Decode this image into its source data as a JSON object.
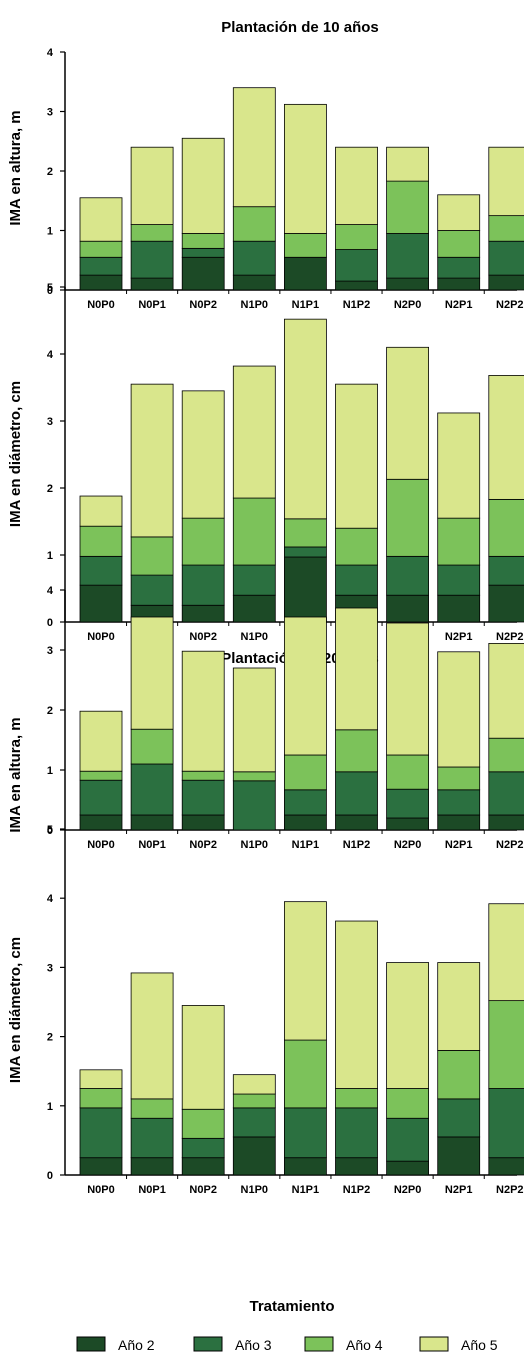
{
  "colors": {
    "Año 2": "#1c4a26",
    "Año 3": "#2b7040",
    "Año 4": "#7cc25a",
    "Año 5": "#d9e68c"
  },
  "legend": [
    "Año 2",
    "Año 3",
    "Año 4",
    "Año 5"
  ],
  "xlabel": "Tratamiento",
  "chart_data": [
    {
      "type": "bar",
      "stacked": true,
      "title": "Plantación de 10 años",
      "ylabel": "IMA en altura, m",
      "xlabel": "",
      "ylim": [
        0,
        4
      ],
      "yticks": [
        "0",
        "1",
        "2",
        "3",
        "4"
      ],
      "categories": [
        "N0P0",
        "N0P1",
        "N0P2",
        "N1P0",
        "N1P1",
        "N1P2",
        "N2P0",
        "N2P1",
        "N2P2"
      ],
      "series": [
        {
          "name": "Año 2",
          "values": [
            0.25,
            0.2,
            0.55,
            0.25,
            0.55,
            0.15,
            0.2,
            0.2,
            0.25
          ]
        },
        {
          "name": "Año 3",
          "values": [
            0.3,
            0.62,
            0.15,
            0.57,
            0.0,
            0.53,
            0.75,
            0.35,
            0.57
          ]
        },
        {
          "name": "Año 4",
          "values": [
            0.27,
            0.28,
            0.25,
            0.58,
            0.4,
            0.42,
            0.88,
            0.45,
            0.43
          ]
        },
        {
          "name": "Año 5",
          "values": [
            0.73,
            1.3,
            1.6,
            2.0,
            2.17,
            1.3,
            0.57,
            0.6,
            1.15
          ]
        }
      ]
    },
    {
      "type": "bar",
      "stacked": true,
      "title": "",
      "ylabel": "IMA en diámetro, cm",
      "xlabel": "",
      "ylim": [
        0,
        5
      ],
      "yticks": [
        "0",
        "1",
        "2",
        "3",
        "4",
        "5"
      ],
      "categories": [
        "N0P0",
        "N0P1",
        "N0P2",
        "N1P0",
        "N1P1",
        "N1P2",
        "N2P0",
        "N2P1",
        "N2P2"
      ],
      "series": [
        {
          "name": "Año 2",
          "values": [
            0.55,
            0.25,
            0.25,
            0.4,
            0.97,
            0.4,
            0.4,
            0.4,
            0.55
          ]
        },
        {
          "name": "Año 3",
          "values": [
            0.43,
            0.45,
            0.6,
            0.45,
            0.15,
            0.45,
            0.58,
            0.45,
            0.43
          ]
        },
        {
          "name": "Año 4",
          "values": [
            0.45,
            0.57,
            0.7,
            1.0,
            0.42,
            0.55,
            1.15,
            0.7,
            0.85
          ]
        },
        {
          "name": "Año 5",
          "values": [
            0.45,
            2.28,
            1.9,
            1.97,
            2.98,
            2.15,
            1.97,
            1.57,
            1.85
          ]
        }
      ]
    },
    {
      "type": "bar",
      "stacked": true,
      "title": "Plantación de 20 años",
      "ylabel": "IMA en altura, m",
      "xlabel": "",
      "ylim": [
        0,
        4
      ],
      "yticks": [
        "0",
        "1",
        "2",
        "3",
        "4"
      ],
      "categories": [
        "N0P0",
        "N0P1",
        "N0P2",
        "N1P0",
        "N1P1",
        "N1P2",
        "N2P0",
        "N2P1",
        "N2P2"
      ],
      "series": [
        {
          "name": "Año 2",
          "values": [
            0.25,
            0.25,
            0.25,
            0.0,
            0.25,
            0.25,
            0.2,
            0.25,
            0.25
          ]
        },
        {
          "name": "Año 3",
          "values": [
            0.58,
            0.85,
            0.58,
            0.82,
            0.42,
            0.72,
            0.48,
            0.42,
            0.72
          ]
        },
        {
          "name": "Año 4",
          "values": [
            0.15,
            0.58,
            0.15,
            0.15,
            0.58,
            0.7,
            0.57,
            0.38,
            0.56
          ]
        },
        {
          "name": "Año 5",
          "values": [
            1.0,
            1.87,
            2.0,
            1.73,
            2.3,
            2.03,
            2.2,
            1.92,
            1.58
          ]
        }
      ]
    },
    {
      "type": "bar",
      "stacked": true,
      "title": "",
      "ylabel": "IMA en diámetro, cm",
      "xlabel": "Tratamiento",
      "ylim": [
        0,
        5
      ],
      "yticks": [
        "0",
        "1",
        "2",
        "3",
        "4",
        "5"
      ],
      "categories": [
        "N0P0",
        "N0P1",
        "N0P2",
        "N1P0",
        "N1P1",
        "N1P2",
        "N2P0",
        "N2P1",
        "N2P2"
      ],
      "series": [
        {
          "name": "Año 2",
          "values": [
            0.25,
            0.25,
            0.25,
            0.55,
            0.25,
            0.25,
            0.2,
            0.55,
            0.25
          ]
        },
        {
          "name": "Año 3",
          "values": [
            0.72,
            0.57,
            0.28,
            0.42,
            0.72,
            0.72,
            0.62,
            0.55,
            1.0
          ]
        },
        {
          "name": "Año 4",
          "values": [
            0.28,
            0.28,
            0.42,
            0.2,
            0.98,
            0.28,
            0.43,
            0.7,
            1.27
          ]
        },
        {
          "name": "Año 5",
          "values": [
            0.27,
            1.82,
            1.5,
            0.28,
            2.0,
            2.42,
            1.82,
            1.27,
            1.4
          ]
        }
      ]
    }
  ]
}
